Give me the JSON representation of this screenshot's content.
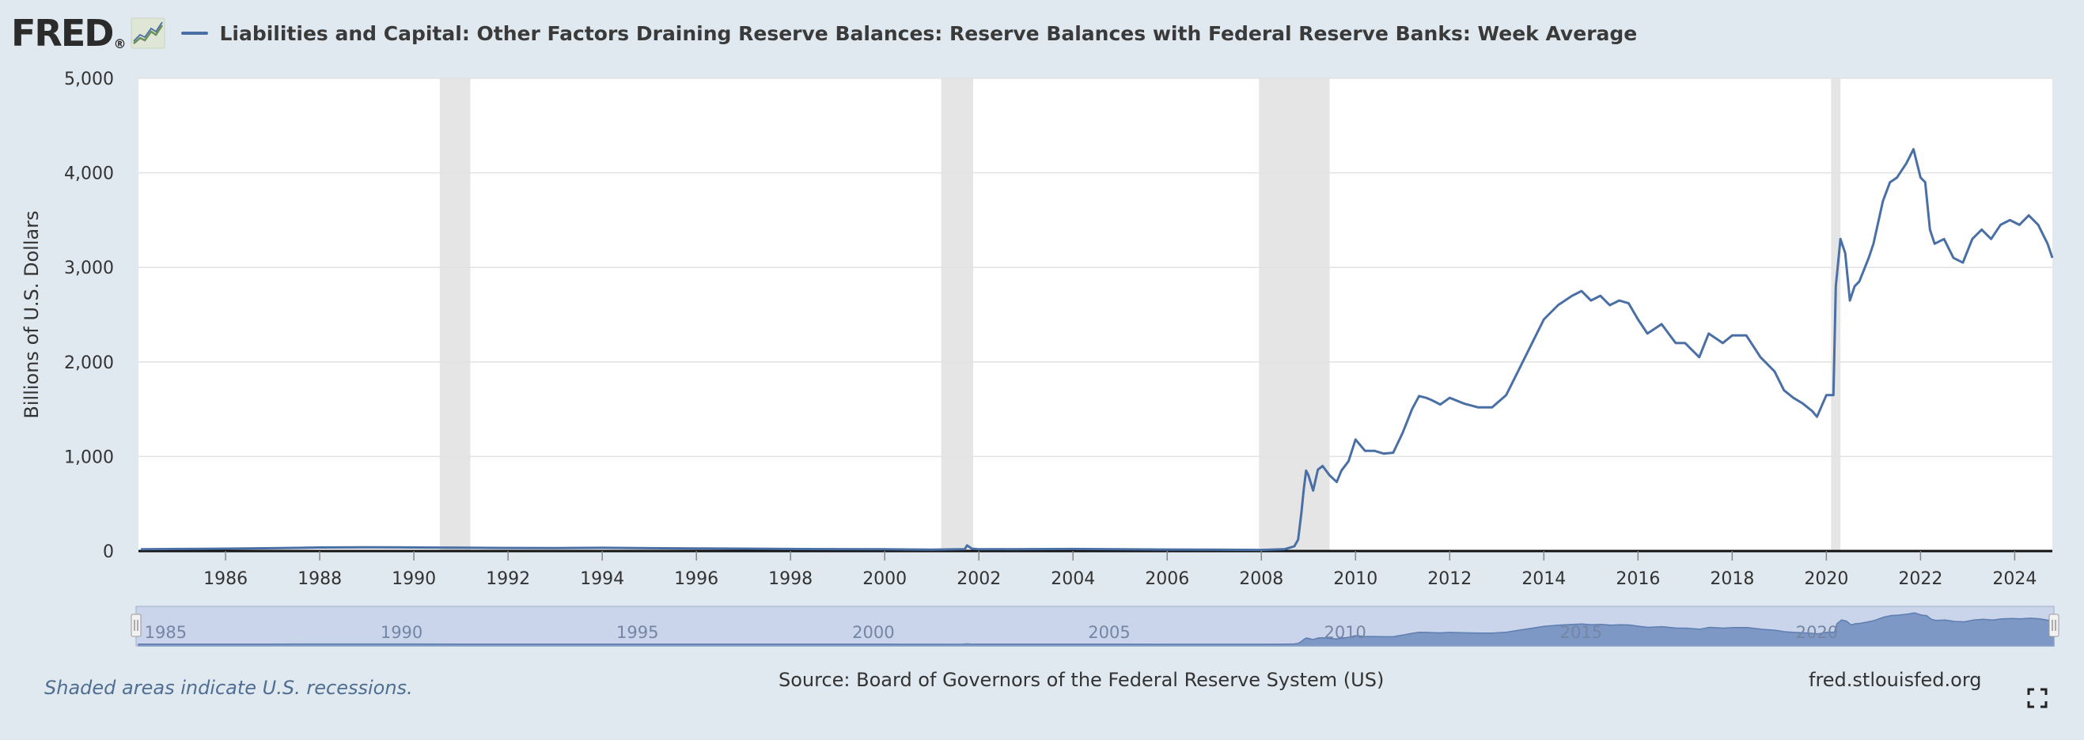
{
  "header": {
    "logo_text": "FRED",
    "logo_mark": "®",
    "logo_icon": "fred-chart-icon",
    "title": "Liabilities and Capital: Other Factors Draining Reserve Balances: Reserve Balances with Federal Reserve Banks: Week Average",
    "series_color": "#4a6fa5"
  },
  "chart_data": {
    "type": "line",
    "ylabel": "Billions of U.S. Dollars",
    "ylim": [
      0,
      5000
    ],
    "yticks": [
      0,
      1000,
      2000,
      3000,
      4000,
      5000
    ],
    "ytick_labels": [
      "0",
      "1,000",
      "2,000",
      "3,000",
      "4,000",
      "5,000"
    ],
    "xlim": [
      1984.15,
      2024.8
    ],
    "xticks": [
      1986,
      1988,
      1990,
      1992,
      1994,
      1996,
      1998,
      2000,
      2002,
      2004,
      2006,
      2008,
      2010,
      2012,
      2014,
      2016,
      2018,
      2020,
      2022,
      2024
    ],
    "grid": true,
    "recessions": [
      [
        1990.55,
        1991.2
      ],
      [
        2001.2,
        2001.88
      ],
      [
        2007.95,
        2009.45
      ],
      [
        2020.1,
        2020.3
      ]
    ],
    "series": [
      {
        "color": "#4a6fa5",
        "x": [
          1984.2,
          1985.0,
          1986.0,
          1987.0,
          1988.0,
          1989.0,
          1990.0,
          1991.0,
          1992.0,
          1993.0,
          1994.0,
          1995.0,
          1996.0,
          1997.0,
          1998.0,
          1999.0,
          2000.0,
          2001.0,
          2001.7,
          2001.75,
          2001.85,
          2002.0,
          2003.0,
          2004.0,
          2005.0,
          2006.0,
          2007.0,
          2008.0,
          2008.5,
          2008.7,
          2008.78,
          2008.85,
          2008.9,
          2008.95,
          2009.0,
          2009.1,
          2009.2,
          2009.3,
          2009.45,
          2009.6,
          2009.7,
          2009.85,
          2010.0,
          2010.2,
          2010.4,
          2010.6,
          2010.8,
          2011.0,
          2011.2,
          2011.35,
          2011.5,
          2011.6,
          2011.8,
          2012.0,
          2012.3,
          2012.6,
          2012.9,
          2013.2,
          2013.5,
          2013.8,
          2014.0,
          2014.3,
          2014.6,
          2014.8,
          2015.0,
          2015.2,
          2015.4,
          2015.6,
          2015.8,
          2016.0,
          2016.2,
          2016.5,
          2016.8,
          2017.0,
          2017.3,
          2017.5,
          2017.8,
          2018.0,
          2018.3,
          2018.6,
          2018.9,
          2019.1,
          2019.3,
          2019.5,
          2019.7,
          2019.8,
          2020.0,
          2020.15,
          2020.2,
          2020.3,
          2020.4,
          2020.5,
          2020.6,
          2020.7,
          2020.9,
          2021.0,
          2021.2,
          2021.35,
          2021.5,
          2021.7,
          2021.85,
          2022.0,
          2022.1,
          2022.2,
          2022.3,
          2022.5,
          2022.7,
          2022.9,
          2023.1,
          2023.3,
          2023.5,
          2023.7,
          2023.9,
          2024.1,
          2024.3,
          2024.5,
          2024.7,
          2024.8
        ],
        "y": [
          18,
          22,
          25,
          30,
          38,
          40,
          38,
          35,
          33,
          32,
          34,
          30,
          28,
          25,
          22,
          20,
          18,
          15,
          20,
          60,
          25,
          18,
          20,
          22,
          18,
          16,
          14,
          12,
          20,
          50,
          120,
          400,
          650,
          850,
          800,
          640,
          860,
          900,
          800,
          730,
          850,
          950,
          1180,
          1060,
          1060,
          1030,
          1040,
          1250,
          1500,
          1640,
          1620,
          1600,
          1550,
          1620,
          1560,
          1520,
          1520,
          1650,
          1950,
          2250,
          2450,
          2600,
          2700,
          2750,
          2650,
          2700,
          2600,
          2650,
          2620,
          2450,
          2300,
          2400,
          2200,
          2200,
          2050,
          2300,
          2200,
          2280,
          2280,
          2050,
          1900,
          1700,
          1620,
          1560,
          1480,
          1420,
          1650,
          1650,
          2800,
          3300,
          3150,
          2650,
          2800,
          2850,
          3100,
          3250,
          3700,
          3900,
          3950,
          4100,
          4250,
          3950,
          3900,
          3400,
          3250,
          3300,
          3100,
          3050,
          3300,
          3400,
          3300,
          3450,
          3500,
          3450,
          3550,
          3450,
          3250,
          3100
        ]
      }
    ],
    "navigator": {
      "labels": [
        "1985",
        "1990",
        "1995",
        "2000",
        "2005",
        "2010",
        "2015",
        "2020"
      ],
      "label_years": [
        1985,
        1990,
        1995,
        2000,
        2005,
        2010,
        2015,
        2020
      ]
    }
  },
  "footer": {
    "note": "Shaded areas indicate U.S. recessions.",
    "source": "Source: Board of Governors of the Federal Reserve System (US)",
    "site": "fred.stlouisfed.org",
    "fullscreen_icon": "fullscreen-icon"
  }
}
